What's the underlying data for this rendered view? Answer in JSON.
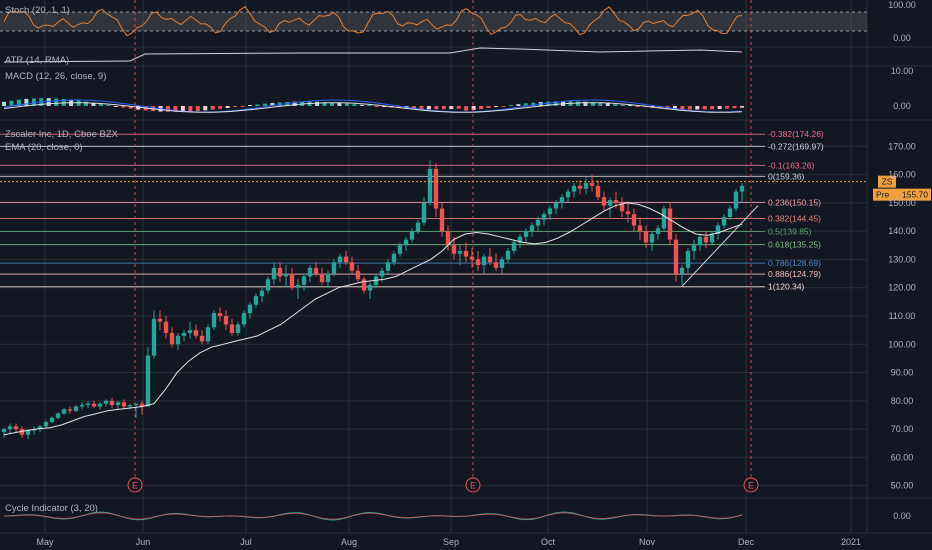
{
  "chart_data": [
    {
      "type": "line",
      "name": "Stoch (20, 1, 1)",
      "yticks": [
        "100.00",
        "0.00"
      ],
      "ylim": [
        0,
        100
      ]
    },
    {
      "type": "line",
      "name": "ATR (14, RMA)",
      "yticks": []
    },
    {
      "type": "bar",
      "name": "MACD (12, 26, close, 9)",
      "yticks": [
        "10.00",
        "0.00"
      ]
    },
    {
      "type": "candlestick",
      "title": "Zscaler Inc, 1D, Cboe BZX",
      "overlay": "EMA (20, close, 0)",
      "ylim": [
        46,
        180
      ],
      "yticks": [
        "170.00",
        "160.00",
        "150.00",
        "140.00",
        "130.00",
        "120.00",
        "110.00",
        "100.00",
        "90.00",
        "80.00",
        "70.00",
        "60.00",
        "50.00"
      ],
      "xticks": [
        "May",
        "Jun",
        "Jul",
        "Aug",
        "Sep",
        "Oct",
        "Nov",
        "Dec",
        "2021"
      ],
      "ohlc": [
        [
          69,
          70.5,
          67,
          70
        ],
        [
          70,
          72,
          68.5,
          71
        ],
        [
          71,
          72,
          69,
          70
        ],
        [
          70,
          71,
          67,
          68
        ],
        [
          68,
          70,
          66.5,
          69.5
        ],
        [
          69.5,
          71,
          68,
          70
        ],
        [
          70,
          71.5,
          69,
          71
        ],
        [
          71,
          73,
          70.5,
          72.5
        ],
        [
          72.5,
          74.5,
          72,
          74
        ],
        [
          74,
          76,
          73.5,
          75.5
        ],
        [
          75.5,
          77.5,
          75,
          77
        ],
        [
          77,
          78,
          75.5,
          76.5
        ],
        [
          76.5,
          78.5,
          76,
          78
        ],
        [
          78,
          79.5,
          77,
          78.5
        ],
        [
          78.5,
          80,
          77.5,
          79
        ],
        [
          79,
          80,
          77.5,
          78
        ],
        [
          78,
          79.5,
          77,
          79
        ],
        [
          79,
          80.5,
          78,
          80
        ],
        [
          80,
          81,
          77.5,
          78.5
        ],
        [
          78.5,
          80,
          77,
          79.5
        ],
        [
          79.5,
          80.5,
          77,
          78
        ],
        [
          78,
          79,
          77,
          78.5
        ],
        [
          78.5,
          79,
          74,
          79
        ],
        [
          79,
          80,
          75,
          78
        ],
        [
          78,
          99,
          78,
          96
        ],
        [
          96,
          112,
          95,
          109
        ],
        [
          109,
          112,
          105,
          108
        ],
        [
          108,
          110,
          102,
          104
        ],
        [
          104,
          106,
          99,
          100
        ],
        [
          100,
          104,
          98,
          103
        ],
        [
          103,
          105,
          101,
          104
        ],
        [
          104,
          108,
          102,
          105
        ],
        [
          105,
          107,
          102,
          103
        ],
        [
          103,
          105,
          100,
          101
        ],
        [
          101,
          107,
          100,
          106
        ],
        [
          106,
          112,
          105,
          111
        ],
        [
          111,
          113,
          108,
          110
        ],
        [
          110,
          112,
          105,
          107
        ],
        [
          107,
          109,
          103,
          104
        ],
        [
          104,
          108,
          103,
          107
        ],
        [
          107,
          112,
          106,
          111
        ],
        [
          111,
          115,
          109,
          114
        ],
        [
          114,
          118,
          113,
          117
        ],
        [
          117,
          120,
          115,
          119
        ],
        [
          119,
          124,
          118,
          123
        ],
        [
          123,
          129,
          121,
          127
        ],
        [
          127,
          129,
          122,
          124
        ],
        [
          124,
          128,
          120,
          125
        ],
        [
          125,
          127,
          119,
          120
        ],
        [
          120,
          123,
          116,
          121
        ],
        [
          121,
          125,
          119,
          124
        ],
        [
          124,
          128,
          122,
          127
        ],
        [
          127,
          129,
          124,
          125
        ],
        [
          125,
          127,
          121,
          122
        ],
        [
          122,
          126,
          120,
          125
        ],
        [
          125,
          130,
          124,
          129
        ],
        [
          129,
          132,
          127,
          131
        ],
        [
          131,
          133,
          128,
          129
        ],
        [
          129,
          131,
          125,
          126
        ],
        [
          126,
          128,
          122,
          123
        ],
        [
          123,
          124,
          118,
          119
        ],
        [
          119,
          122,
          116,
          121
        ],
        [
          121,
          125,
          120,
          124
        ],
        [
          124,
          127,
          122,
          126
        ],
        [
          126,
          130,
          125,
          129
        ],
        [
          129,
          133,
          128,
          132
        ],
        [
          132,
          136,
          131,
          135
        ],
        [
          135,
          138,
          133,
          137
        ],
        [
          137,
          141,
          136,
          140
        ],
        [
          140,
          144,
          139,
          143
        ],
        [
          143,
          152,
          142,
          150
        ],
        [
          150,
          165,
          149,
          162
        ],
        [
          162,
          164,
          145,
          148
        ],
        [
          148,
          150,
          138,
          140
        ],
        [
          140,
          142,
          133,
          135
        ],
        [
          135,
          138,
          130,
          132
        ],
        [
          132,
          135,
          128,
          133
        ],
        [
          133,
          136,
          129,
          131
        ],
        [
          131,
          134,
          127,
          130
        ],
        [
          130,
          133,
          126,
          128
        ],
        [
          128,
          132,
          125,
          131
        ],
        [
          131,
          134,
          128,
          129
        ],
        [
          129,
          132,
          126,
          127
        ],
        [
          127,
          131,
          125,
          130
        ],
        [
          130,
          134,
          129,
          133
        ],
        [
          133,
          137,
          132,
          136
        ],
        [
          136,
          139,
          134,
          138
        ],
        [
          138,
          141,
          136,
          140
        ],
        [
          140,
          143,
          138,
          142
        ],
        [
          142,
          145,
          140,
          144
        ],
        [
          144,
          147,
          142,
          146
        ],
        [
          146,
          149,
          144,
          148
        ],
        [
          148,
          151,
          146,
          150
        ],
        [
          150,
          153,
          148,
          152
        ],
        [
          152,
          155,
          150,
          154
        ],
        [
          154,
          157,
          152,
          156
        ],
        [
          156,
          158,
          153,
          155
        ],
        [
          155,
          159,
          153,
          157
        ],
        [
          157,
          160,
          154,
          156
        ],
        [
          156,
          158,
          151,
          152
        ],
        [
          152,
          154,
          147,
          149
        ],
        [
          149,
          152,
          145,
          151
        ],
        [
          151,
          154,
          148,
          150
        ],
        [
          150,
          152,
          145,
          147
        ],
        [
          147,
          150,
          143,
          146
        ],
        [
          146,
          148,
          140,
          142
        ],
        [
          142,
          145,
          137,
          140
        ],
        [
          140,
          142,
          134,
          136
        ],
        [
          136,
          140,
          133,
          139
        ],
        [
          139,
          142,
          137,
          141
        ],
        [
          141,
          149,
          140,
          148
        ],
        [
          148,
          150,
          135,
          137
        ],
        [
          137,
          139,
          122,
          125
        ],
        [
          125,
          128,
          121,
          127
        ],
        [
          127,
          134,
          125,
          133
        ],
        [
          133,
          137,
          130,
          135
        ],
        [
          135,
          139,
          133,
          138
        ],
        [
          138,
          140,
          134,
          136
        ],
        [
          136,
          140,
          135,
          139
        ],
        [
          139,
          143,
          137,
          142
        ],
        [
          142,
          146,
          141,
          145
        ],
        [
          145,
          149,
          144,
          148
        ],
        [
          148,
          155,
          147,
          154
        ],
        [
          154,
          157,
          150,
          156
        ]
      ],
      "ema20": [
        68,
        68.8,
        69.5,
        70.1,
        70.5,
        71.5,
        73,
        74.5,
        75.5,
        76.5,
        77,
        77.5,
        78,
        79,
        84,
        90,
        94,
        97,
        99,
        100,
        101,
        102,
        103,
        105,
        107,
        110,
        113,
        116,
        118,
        120,
        121,
        122,
        122.5,
        123,
        124,
        126,
        128,
        130,
        133,
        137,
        139,
        139.5,
        139,
        138,
        137,
        136,
        135.5,
        136,
        137.5,
        139.5,
        142,
        144.5,
        147,
        149,
        150,
        149.5,
        148,
        146,
        143.5,
        141,
        139,
        138.5,
        139.5,
        141,
        142.5
      ],
      "fib_levels": [
        {
          "ratio": "-0.382",
          "value": 174.26,
          "label": "-0.382(174.26)",
          "color": "#ef6f8a"
        },
        {
          "ratio": "-0.272",
          "value": 169.97,
          "label": "-0.272(169.97)",
          "color": "#d1d4dc"
        },
        {
          "ratio": "-0.1",
          "value": 163.26,
          "label": "-0.1(163.26)",
          "color": "#ef6f8a"
        },
        {
          "ratio": "0",
          "value": 159.36,
          "label": "0(159.36)",
          "color": "#d1d4dc"
        },
        {
          "ratio": "0.236",
          "value": 150.15,
          "label": "0.236(150.15)",
          "color": "#f7a0ad"
        },
        {
          "ratio": "0.382",
          "value": 144.45,
          "label": "0.382(144.45)",
          "color": "#f0837f"
        },
        {
          "ratio": "0.5",
          "value": 139.85,
          "label": "0.5(139.85)",
          "color": "#5fa36b"
        },
        {
          "ratio": "0.618",
          "value": 135.25,
          "label": "0.618(135.25)",
          "color": "#7fc488"
        },
        {
          "ratio": "0.786",
          "value": 128.69,
          "label": "0.786(128.69)",
          "color": "#4f84c4"
        },
        {
          "ratio": "0.886",
          "value": 124.79,
          "label": "0.886(124.79)",
          "color": "#f3c0b6"
        },
        {
          "ratio": "1",
          "value": 120.34,
          "label": "1(120.34)",
          "color": "#f2dcd5"
        }
      ],
      "price_tag": {
        "symbol": "ZS",
        "label": "Pre",
        "value": "155.70",
        "color": "#f2a03d"
      },
      "earnings_marker": "E"
    },
    {
      "type": "line",
      "name": "Cycle Indicator (3, 20)",
      "yticks": [
        "0.00"
      ]
    }
  ],
  "colors": {
    "background": "#131722",
    "grid": "#2a2e39",
    "up": "#26a69a",
    "down": "#ef5350",
    "stoch": "#e0823a",
    "ema": "#e6e6e6"
  }
}
